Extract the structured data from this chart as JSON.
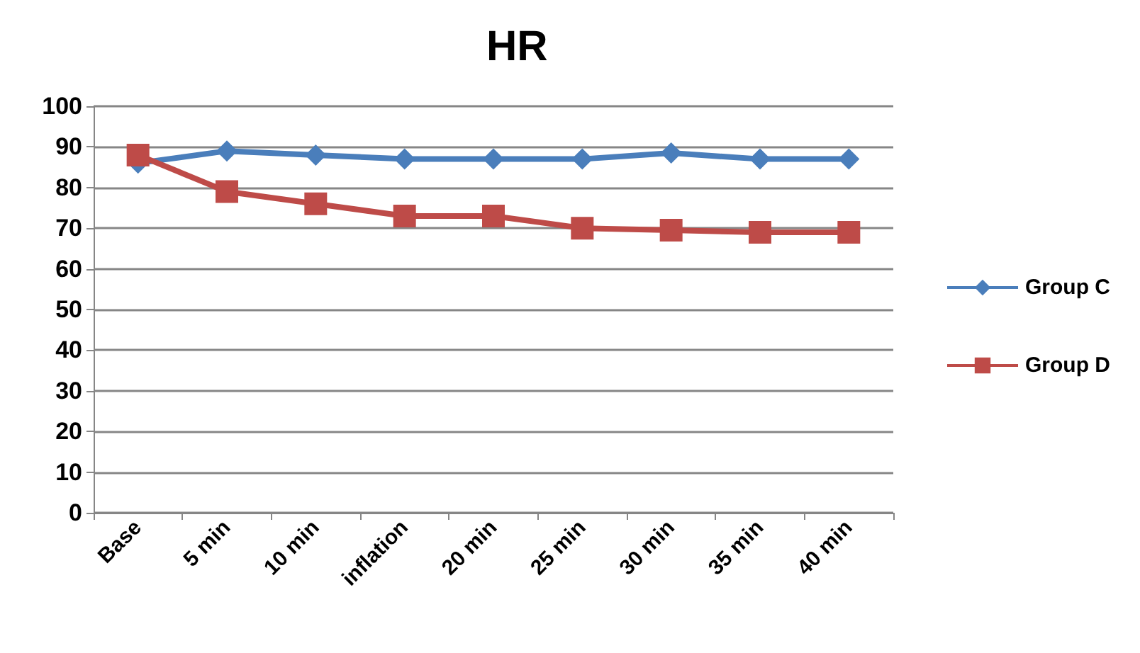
{
  "chart_data": {
    "type": "line",
    "title": "HR",
    "categories": [
      "Base",
      "5 min",
      "10 min",
      "inflation",
      "20 min",
      "25 min",
      "30 min",
      "35 min",
      "40 min"
    ],
    "series": [
      {
        "name": "Group C",
        "color": "#4a7ebb",
        "marker": "diamond",
        "values": [
          86,
          89,
          88,
          87,
          87,
          87,
          88.5,
          87,
          87
        ]
      },
      {
        "name": "Group D",
        "color": "#be4b48",
        "marker": "square",
        "values": [
          88,
          79,
          76,
          73,
          73,
          70,
          69.5,
          69,
          69
        ]
      }
    ],
    "ylim": [
      0,
      100
    ],
    "yticks": [
      0,
      10,
      20,
      30,
      40,
      50,
      60,
      70,
      80,
      90,
      100
    ],
    "grid": "y",
    "legend": "right"
  }
}
